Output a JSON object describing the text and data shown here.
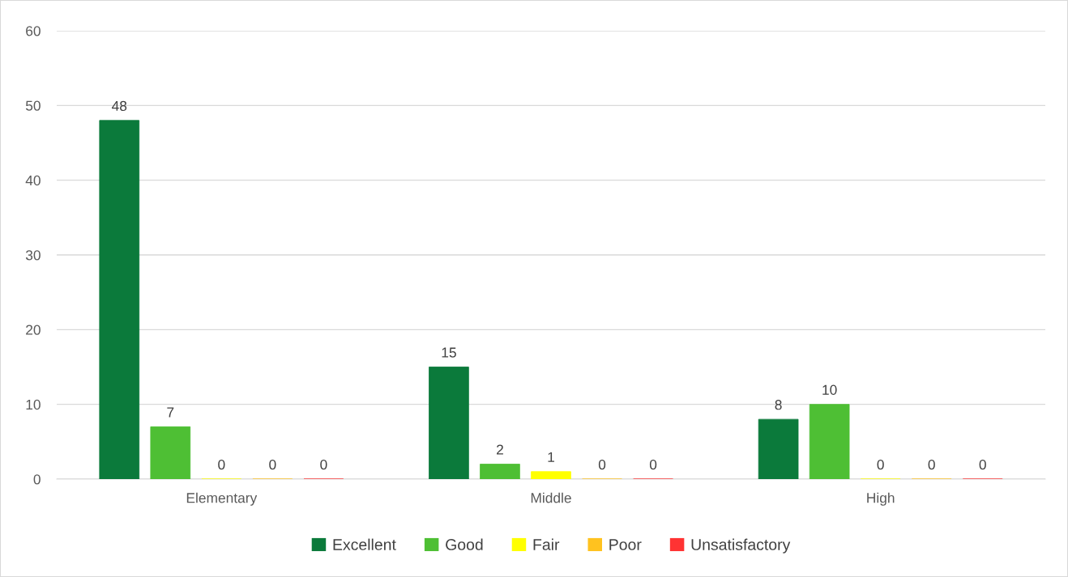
{
  "chart_data": {
    "type": "bar",
    "categories": [
      "Elementary",
      "Middle",
      "High"
    ],
    "series": [
      {
        "name": "Excellent",
        "color": "#0b7a3b",
        "values": [
          48,
          15,
          8
        ]
      },
      {
        "name": "Good",
        "color": "#4ebf34",
        "values": [
          7,
          2,
          10
        ]
      },
      {
        "name": "Fair",
        "color": "#ffff00",
        "values": [
          0,
          1,
          0
        ]
      },
      {
        "name": "Poor",
        "color": "#ffc21f",
        "values": [
          0,
          0,
          0
        ]
      },
      {
        "name": "Unsatisfactory",
        "color": "#ff3333",
        "values": [
          0,
          0,
          0
        ]
      }
    ],
    "ylim": [
      0,
      60
    ],
    "yticks": [
      0,
      10,
      20,
      30,
      40,
      50,
      60
    ],
    "grid": "y",
    "legend": "bottom",
    "data_labels": true
  }
}
